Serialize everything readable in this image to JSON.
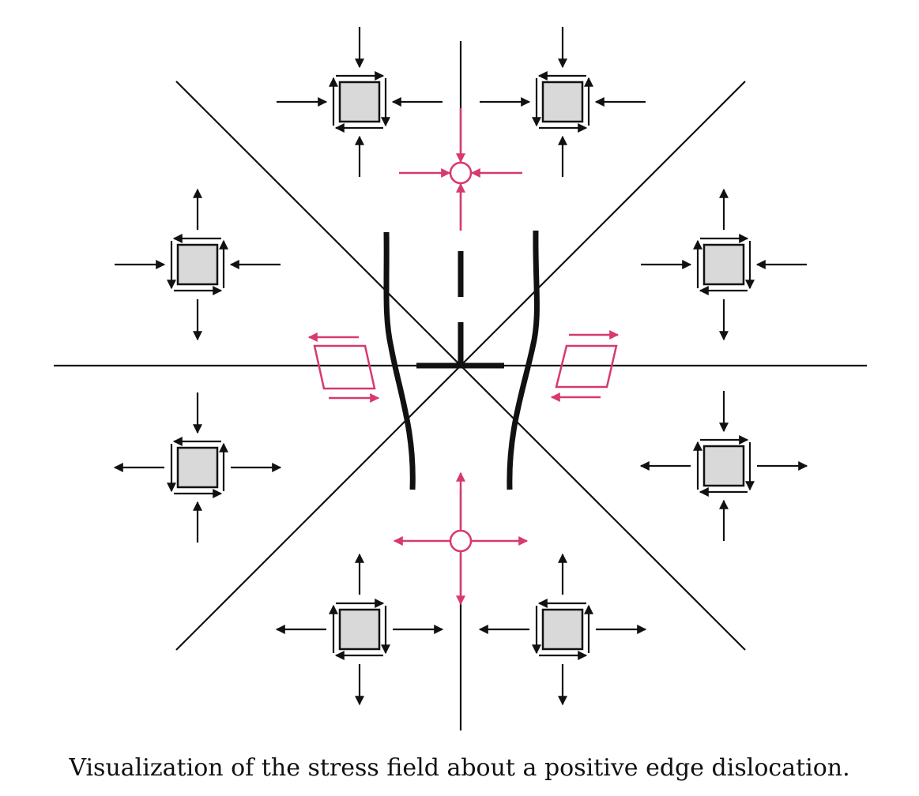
{
  "caption": "Visualization of the stress field about a positive edge dislocation.",
  "colors": {
    "line": "#111111",
    "element_fill": "#d9d9d9",
    "accent": "#d8396e"
  },
  "elements": {
    "upper_region": "compression",
    "lower_region": "tension",
    "side_regions": "shear"
  }
}
